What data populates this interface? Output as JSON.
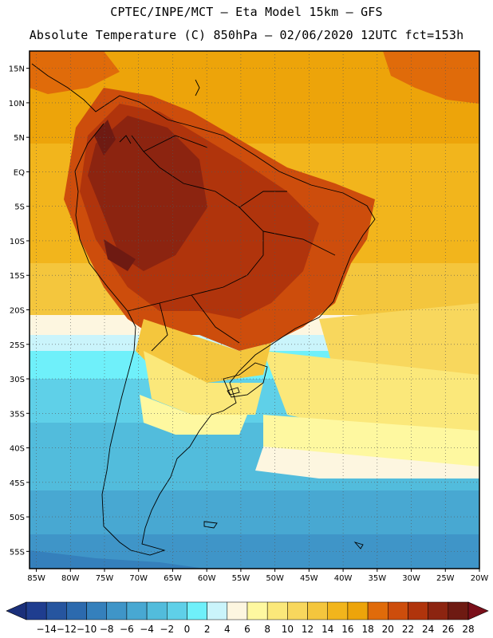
{
  "header": {
    "title_line1": "CPTEC/INPE/MCT –  Eta Model 15km – GFS",
    "title_line2": "Absolute Temperature (C) 850hPa – 02/06/2020 12UTC fct=153h"
  },
  "map": {
    "latitude_labels": [
      "15N",
      "10N",
      "5N",
      "EQ",
      "5S",
      "10S",
      "15S",
      "20S",
      "25S",
      "30S",
      "35S",
      "40S",
      "45S",
      "50S",
      "55S"
    ],
    "latitude_values": [
      15,
      10,
      5,
      0,
      -5,
      -10,
      -15,
      -20,
      -25,
      -30,
      -35,
      -40,
      -45,
      -50,
      -55
    ],
    "longitude_labels": [
      "85W",
      "80W",
      "75W",
      "70W",
      "65W",
      "60W",
      "55W",
      "50W",
      "45W",
      "40W",
      "35W",
      "30W",
      "25W",
      "20W"
    ],
    "longitude_values": [
      -85,
      -80,
      -75,
      -70,
      -65,
      -60,
      -55,
      -50,
      -45,
      -40,
      -35,
      -30,
      -25,
      -20
    ],
    "lat_range": [
      -57.5,
      17.5
    ],
    "lon_range": [
      -86,
      -20
    ]
  },
  "colorbar": {
    "tick_labels": [
      "-14",
      "-12",
      "-10",
      "-8",
      "-6",
      "-4",
      "-2",
      "0",
      "2",
      "4",
      "6",
      "8",
      "10",
      "12",
      "14",
      "16",
      "18",
      "20",
      "22",
      "24",
      "26",
      "28"
    ],
    "colors": [
      "#1f3d8f",
      "#26559f",
      "#2c6aae",
      "#3580bc",
      "#3f95c8",
      "#48a8d2",
      "#52bcdc",
      "#5fd0e8",
      "#6ff0fa",
      "#caf4fb",
      "#fdf6e0",
      "#fef8a0",
      "#fbe87a",
      "#f8d75d",
      "#f4c63d",
      "#f2b51c",
      "#eda40a",
      "#e06b0a",
      "#cd4d0c",
      "#b0340c",
      "#8c2410",
      "#6e1a12"
    ],
    "low_end_color": "#1a2f7a",
    "high_end_color": "#7a0f1a"
  }
}
